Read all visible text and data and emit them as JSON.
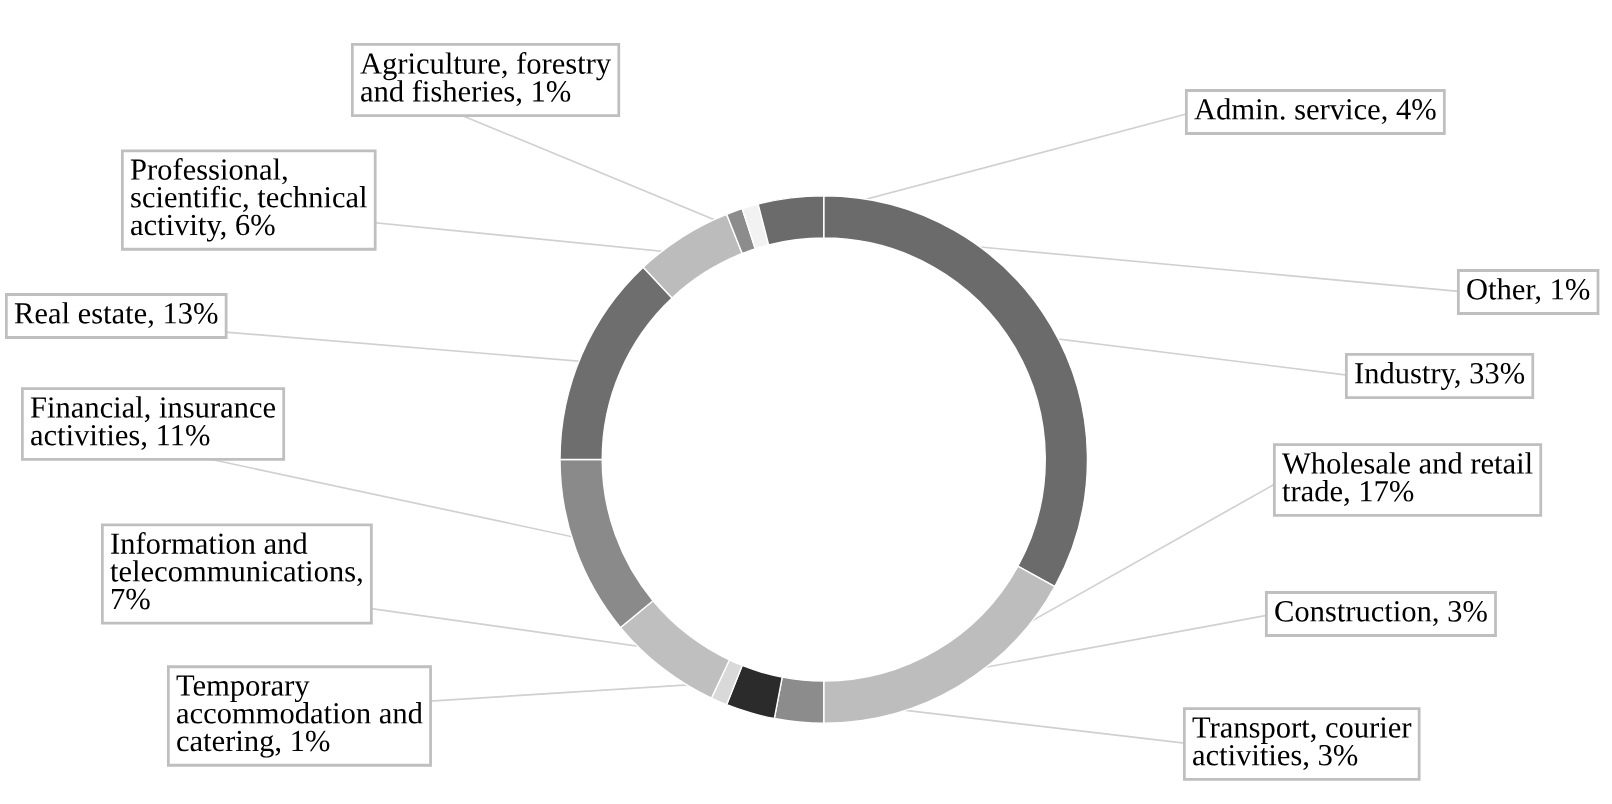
{
  "chart_data": {
    "type": "donut",
    "categories": [
      "Industry, 33%",
      "Wholesale and retail\ntrade, 17%",
      "Construction, 3%",
      "Transport, courier\nactivities, 3%",
      "Temporary\naccommodation and\ncatering, 1%",
      "Information and\ntelecommunications,\n7%",
      "Financial, insurance\nactivities, 11%",
      "Real estate, 13%",
      "Professional,\nscientific, technical\nactivity, 6%",
      "Agriculture, forestry\nand fisheries, 1%",
      "Other, 1%",
      "Admin. service, 4%"
    ],
    "values": [
      33,
      17,
      3,
      3,
      1,
      7,
      11,
      13,
      6,
      1,
      1,
      4
    ],
    "colors": [
      "#6b6b6b",
      "#bdbdbd",
      "#8c8c8c",
      "#2b2b2b",
      "#d9d9d9",
      "#bfbfbf",
      "#8a8a8a",
      "#6e6e6e",
      "#bcbcbc",
      "#8c8c8c",
      "#f2f2f2",
      "#6b6b6b"
    ]
  }
}
